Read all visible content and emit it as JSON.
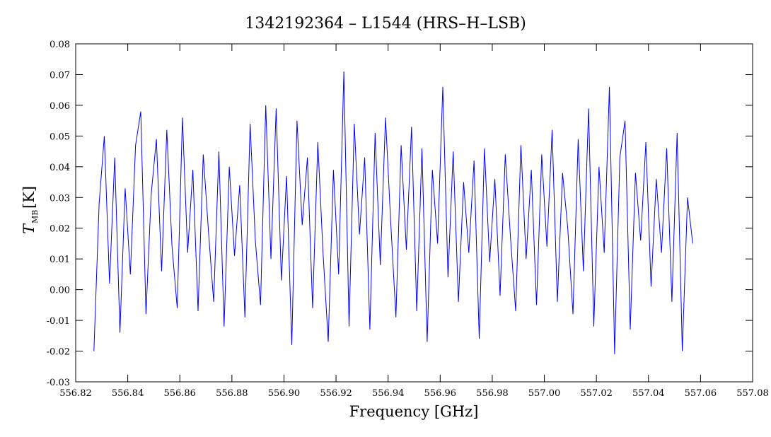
{
  "chart_data": {
    "type": "line",
    "title": "1342192364 – L1544 (HRS–H–LSB)",
    "x_label": "Frequency [GHz]",
    "y_label": {
      "main": "T",
      "subscript": "MB",
      "unit": "[K]"
    },
    "color": "#0000ff",
    "xlim": [
      556.82,
      557.08
    ],
    "ylim": [
      -0.03,
      0.08
    ],
    "xticks": [
      556.82,
      556.84,
      556.86,
      556.88,
      {
        "value": 556.9,
        "label": "556.90"
      },
      556.92,
      556.94,
      556.96,
      556.98,
      {
        "value": 557,
        "label": "557.00"
      },
      557.02,
      557.04,
      557.06,
      557.08
    ],
    "yticks": [
      -0.03,
      -0.02,
      -0.01,
      {
        "value": 0,
        "label": "0.00"
      },
      0.01,
      0.02,
      0.03,
      0.04,
      0.05,
      0.06,
      0.07,
      0.08
    ],
    "x": [
      556.827,
      556.829,
      556.831,
      556.833,
      556.835,
      556.837,
      556.839,
      556.841,
      556.843,
      556.845,
      556.847,
      556.849,
      556.851,
      556.853,
      556.855,
      556.857,
      556.859,
      556.861,
      556.863,
      556.865,
      556.867,
      556.869,
      556.871,
      556.873,
      556.875,
      556.877,
      556.879,
      556.881,
      556.883,
      556.885,
      556.887,
      556.889,
      556.891,
      556.893,
      556.895,
      556.897,
      556.899,
      556.901,
      556.903,
      556.905,
      556.907,
      556.909,
      556.911,
      556.913,
      556.915,
      556.917,
      556.919,
      556.921,
      556.923,
      556.925,
      556.927,
      556.929,
      556.931,
      556.933,
      556.935,
      556.937,
      556.939,
      556.941,
      556.943,
      556.945,
      556.947,
      556.949,
      556.951,
      556.953,
      556.955,
      556.957,
      556.959,
      556.961,
      556.963,
      556.965,
      556.967,
      556.969,
      556.971,
      556.973,
      556.975,
      556.977,
      556.979,
      556.981,
      556.983,
      556.985,
      556.987,
      556.989,
      556.991,
      556.993,
      556.995,
      556.997,
      556.999,
      557.001,
      557.003,
      557.005,
      557.007,
      557.009,
      557.011,
      557.013,
      557.015,
      557.017,
      557.019,
      557.021,
      557.023,
      557.025,
      557.027,
      557.029,
      557.031,
      557.033,
      557.035,
      557.037,
      557.039,
      557.041,
      557.043,
      557.045,
      557.047,
      557.049,
      557.051,
      557.053,
      557.055,
      557.057
    ],
    "values": [
      -0.02,
      0.028,
      0.05,
      0.002,
      0.043,
      -0.014,
      0.033,
      0.005,
      0.047,
      0.058,
      -0.008,
      0.031,
      0.049,
      0.006,
      0.052,
      0.014,
      -0.006,
      0.056,
      0.012,
      0.039,
      -0.007,
      0.044,
      0.019,
      -0.004,
      0.045,
      -0.012,
      0.04,
      0.011,
      0.034,
      -0.009,
      0.054,
      0.016,
      -0.005,
      0.06,
      0.01,
      0.059,
      0.003,
      0.037,
      -0.018,
      0.055,
      0.021,
      0.043,
      -0.006,
      0.048,
      0.012,
      -0.017,
      0.039,
      0.005,
      0.071,
      -0.012,
      0.054,
      0.018,
      0.043,
      -0.013,
      0.051,
      0.008,
      0.056,
      0.022,
      -0.009,
      0.047,
      0.013,
      0.053,
      -0.007,
      0.046,
      -0.017,
      0.039,
      0.015,
      0.066,
      0.004,
      0.045,
      -0.004,
      0.035,
      0.012,
      0.042,
      -0.016,
      0.046,
      0.009,
      0.036,
      -0.002,
      0.044,
      0.017,
      -0.007,
      0.047,
      0.01,
      0.039,
      -0.005,
      0.044,
      0.014,
      0.052,
      -0.004,
      0.038,
      0.02,
      -0.008,
      0.049,
      0.006,
      0.059,
      -0.012,
      0.04,
      0.012,
      0.066,
      -0.021,
      0.043,
      0.055,
      -0.013,
      0.038,
      0.016,
      0.048,
      0.001,
      0.036,
      0.012,
      0.046,
      -0.004,
      0.051,
      -0.02,
      0.03,
      0.015
    ]
  }
}
